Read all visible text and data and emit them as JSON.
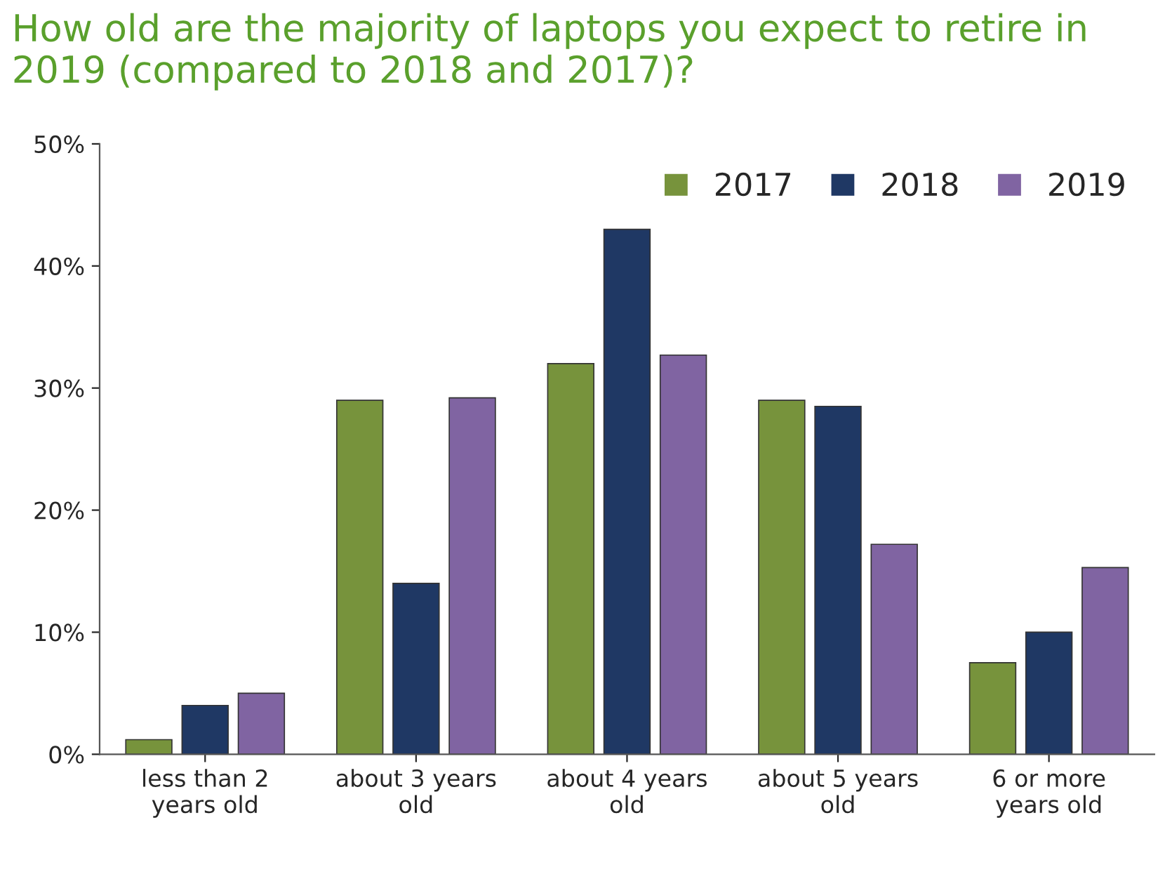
{
  "chart_data": {
    "type": "bar",
    "title": "How old are the majority of laptops you expect to retire in 2019 (compared to 2018 and 2017)?",
    "categories": [
      "less than 2\nyears old",
      "about 3 years\nold",
      "about 4 years\nold",
      "about 5 years\nold",
      "6 or more\nyears old"
    ],
    "series": [
      {
        "name": "2017",
        "color": "#77933c",
        "values": [
          1.2,
          29,
          32,
          29,
          7.5
        ]
      },
      {
        "name": "2018",
        "color": "#1f3864",
        "values": [
          4,
          14,
          43,
          28.5,
          10
        ]
      },
      {
        "name": "2019",
        "color": "#8064a2",
        "values": [
          5,
          29.2,
          32.7,
          17.2,
          15.3
        ]
      }
    ],
    "ylim": [
      0,
      50
    ],
    "yticks": [
      {
        "value": 0,
        "label": "0%"
      },
      {
        "value": 10,
        "label": "10%"
      },
      {
        "value": 20,
        "label": "20%"
      },
      {
        "value": 30,
        "label": "30%"
      },
      {
        "value": 40,
        "label": "40%"
      },
      {
        "value": 50,
        "label": "50%"
      }
    ],
    "legend": "top right",
    "grid": false
  }
}
